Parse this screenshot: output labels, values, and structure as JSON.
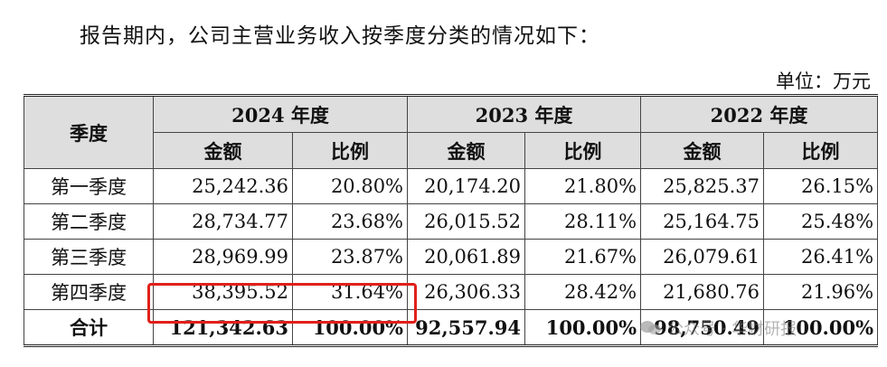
{
  "intro_text": "报告期内，公司主营业务收入按季度分类的情况如下：",
  "unit_text": "单位：万元",
  "table": {
    "row_header": "季度",
    "years": [
      "2024 年度",
      "2023 年度",
      "2022 年度"
    ],
    "sub_headers": [
      "金额",
      "比例"
    ],
    "rows": [
      {
        "label": "第一季度",
        "cells": [
          "25,242.36",
          "20.80%",
          "20,174.20",
          "21.80%",
          "25,825.37",
          "26.15%"
        ]
      },
      {
        "label": "第二季度",
        "cells": [
          "28,734.77",
          "23.68%",
          "26,015.52",
          "28.11%",
          "25,164.75",
          "25.48%"
        ]
      },
      {
        "label": "第三季度",
        "cells": [
          "28,969.99",
          "23.87%",
          "20,061.89",
          "21.67%",
          "26,079.61",
          "26.41%"
        ]
      },
      {
        "label": "第四季度",
        "cells": [
          "38,395.52",
          "31.64%",
          "26,306.33",
          "28.42%",
          "21,680.76",
          "21.96%"
        ]
      },
      {
        "label": "合计",
        "cells": [
          "121,342.63",
          "100.00%",
          "92,557.94",
          "100.00%",
          "98,750.49",
          "100.00%"
        ]
      }
    ]
  },
  "watermark": {
    "text": "公众号 · 华财研报",
    "icon": "wechat-icon",
    "color": "#8a8a8a"
  },
  "highlight_color": "#e0201a"
}
